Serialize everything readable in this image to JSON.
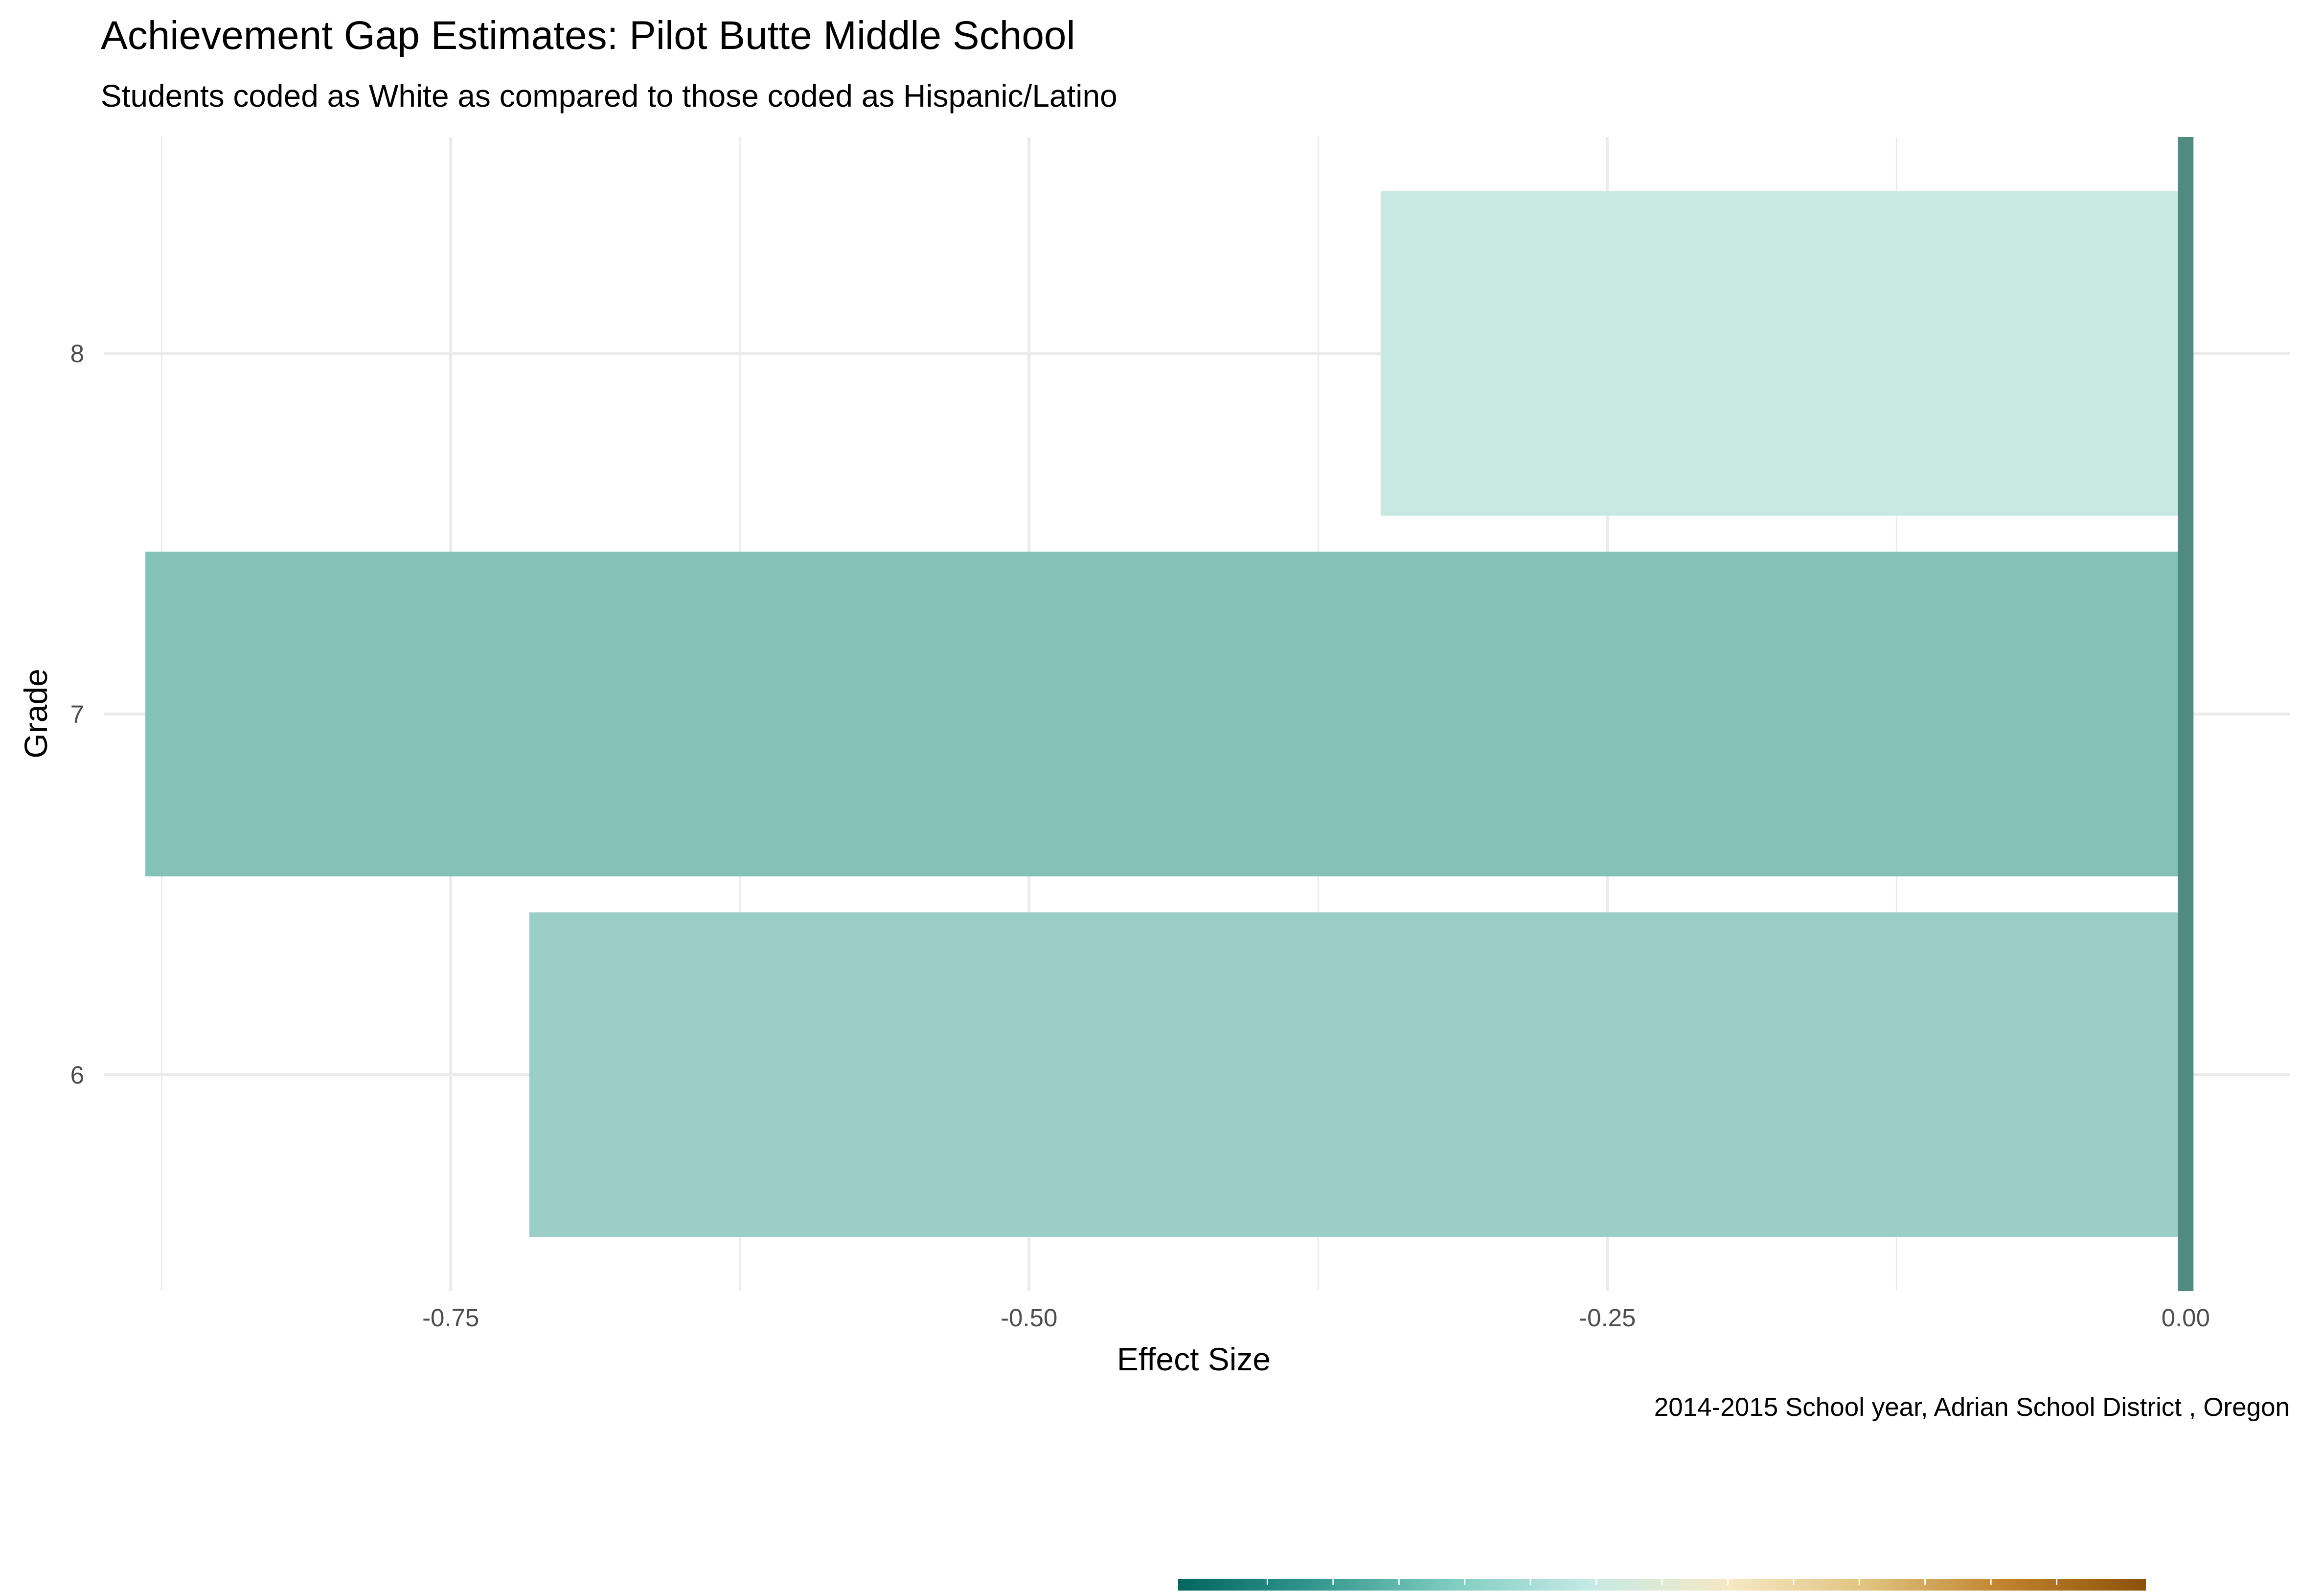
{
  "chart_data": {
    "type": "bar",
    "orientation": "horizontal",
    "title": "Achievement Gap Estimates: Pilot Butte Middle School",
    "subtitle": "Students coded as White as compared to those coded as Hispanic/Latino",
    "xlabel": "Effect Size",
    "ylabel": "Grade",
    "caption": "2014-2015 School year,  Adrian School District , Oregon",
    "categories": [
      "6",
      "7",
      "8"
    ],
    "values": [
      -0.716,
      -0.882,
      -0.348
    ],
    "bar_colors": [
      "#9BCEC7",
      "#84C2B8",
      "#C8E8E2"
    ],
    "x_ticks": [
      -0.75,
      -0.5,
      -0.25,
      0
    ],
    "x_tick_labels": [
      "-0.75",
      "-0.50",
      "-0.25",
      "0.00"
    ],
    "xlim": [
      -0.9,
      0.045
    ],
    "zero_line_color": "#518A80",
    "grid": true,
    "grid_color": "#EBEBEB",
    "legend": "bottom",
    "legend_colorbar": [
      "#01665E",
      "#35978F",
      "#80CDC1",
      "#C7EAE5",
      "#F6E8C3",
      "#DFC27D",
      "#BF812D",
      "#8C510A"
    ]
  }
}
